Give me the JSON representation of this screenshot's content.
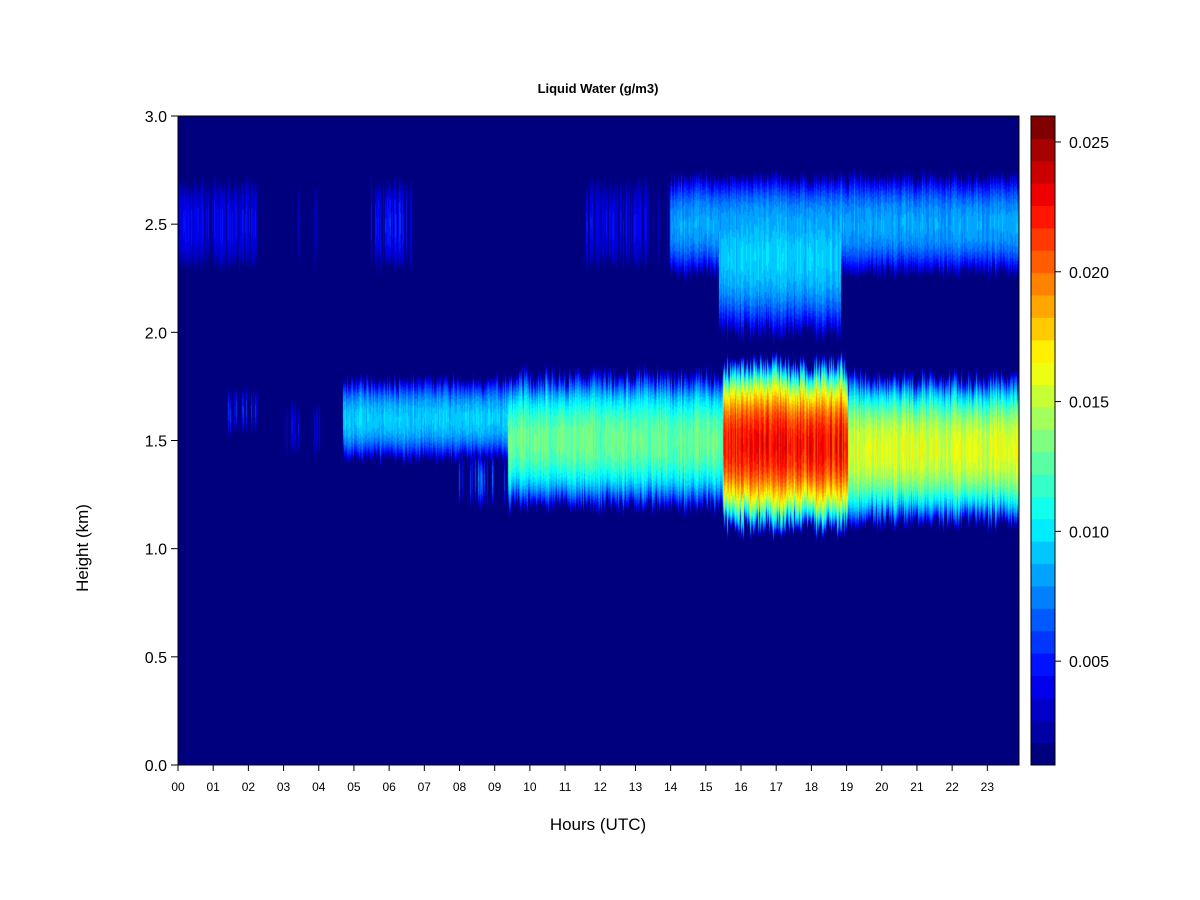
{
  "chart_data": {
    "type": "heatmap",
    "title": "Liquid Water (g/m3)",
    "xlabel": "Hours (UTC)",
    "ylabel": "Height (km)",
    "xlim": [
      0,
      23.9
    ],
    "ylim": [
      0.0,
      3.0
    ],
    "x_ticks": [
      "00",
      "01",
      "02",
      "03",
      "04",
      "05",
      "06",
      "07",
      "08",
      "09",
      "10",
      "11",
      "12",
      "13",
      "14",
      "15",
      "16",
      "17",
      "18",
      "19",
      "20",
      "21",
      "22",
      "23"
    ],
    "y_ticks": [
      "0.0",
      "0.5",
      "1.0",
      "1.5",
      "2.0",
      "2.5",
      "3.0"
    ],
    "colorbar": {
      "range": [
        0.001,
        0.026
      ],
      "ticks": [
        "0.005",
        "0.010",
        "0.015",
        "0.020",
        "0.025"
      ],
      "colors": [
        "#00007f",
        "#0000a4",
        "#0000c8",
        "#0000ed",
        "#0012ff",
        "#0036ff",
        "#005aff",
        "#007fff",
        "#00a3ff",
        "#00c8ff",
        "#00ecff",
        "#11ffed",
        "#35ffc9",
        "#5affa4",
        "#7eff80",
        "#a3ff5b",
        "#c7ff37",
        "#ecff12",
        "#ffef00",
        "#ffcb00",
        "#ffa600",
        "#ff8200",
        "#ff5d00",
        "#ff3900",
        "#ff1500",
        "#ef0000",
        "#ca0000",
        "#a60000",
        "#800000"
      ]
    },
    "layers": [
      {
        "name": "upper",
        "center_km": 2.5,
        "segments": [
          {
            "x0": 0.0,
            "x1": 2.2,
            "half_width_km": 0.2,
            "peak": 0.005,
            "pattern": "striped"
          },
          {
            "x0": 3.4,
            "x1": 3.9,
            "half_width_km": 0.2,
            "peak": 0.004,
            "pattern": "sparse"
          },
          {
            "x0": 5.5,
            "x1": 6.6,
            "half_width_km": 0.2,
            "peak": 0.006,
            "pattern": "striped"
          },
          {
            "x0": 11.6,
            "x1": 13.4,
            "half_width_km": 0.2,
            "peak": 0.005,
            "pattern": "striped"
          },
          {
            "x0": 13.4,
            "x1": 14.0,
            "half_width_km": 0.2,
            "peak": 0.004,
            "pattern": "sparse"
          },
          {
            "x0": 14.0,
            "x1": 23.9,
            "half_width_km": 0.22,
            "peak": 0.009,
            "pattern": "solid"
          },
          {
            "x0": 15.4,
            "x1": 18.8,
            "half_width_km": 0.35,
            "peak": 0.01,
            "pattern": "solid",
            "center_km": 2.35
          }
        ]
      },
      {
        "name": "lower",
        "center_km": 1.5,
        "segments": [
          {
            "x0": 1.4,
            "x1": 2.2,
            "half_width_km": 0.1,
            "peak": 0.006,
            "pattern": "sparse",
            "center_km": 1.63
          },
          {
            "x0": 3.0,
            "x1": 4.0,
            "half_width_km": 0.12,
            "peak": 0.005,
            "pattern": "sparse",
            "center_km": 1.55
          },
          {
            "x0": 4.7,
            "x1": 9.4,
            "half_width_km": 0.18,
            "peak": 0.01,
            "pattern": "solid",
            "center_km": 1.6
          },
          {
            "x0": 8.0,
            "x1": 9.5,
            "half_width_km": 0.12,
            "peak": 0.008,
            "pattern": "sparse",
            "center_km": 1.32
          },
          {
            "x0": 9.4,
            "x1": 15.5,
            "half_width_km": 0.3,
            "peak": 0.014,
            "pattern": "solid",
            "center_km": 1.5
          },
          {
            "x0": 15.5,
            "x1": 19.0,
            "half_width_km": 0.38,
            "peak": 0.024,
            "pattern": "solid",
            "center_km": 1.48
          },
          {
            "x0": 19.0,
            "x1": 23.9,
            "half_width_km": 0.33,
            "peak": 0.017,
            "pattern": "solid",
            "center_km": 1.46
          }
        ]
      }
    ]
  }
}
